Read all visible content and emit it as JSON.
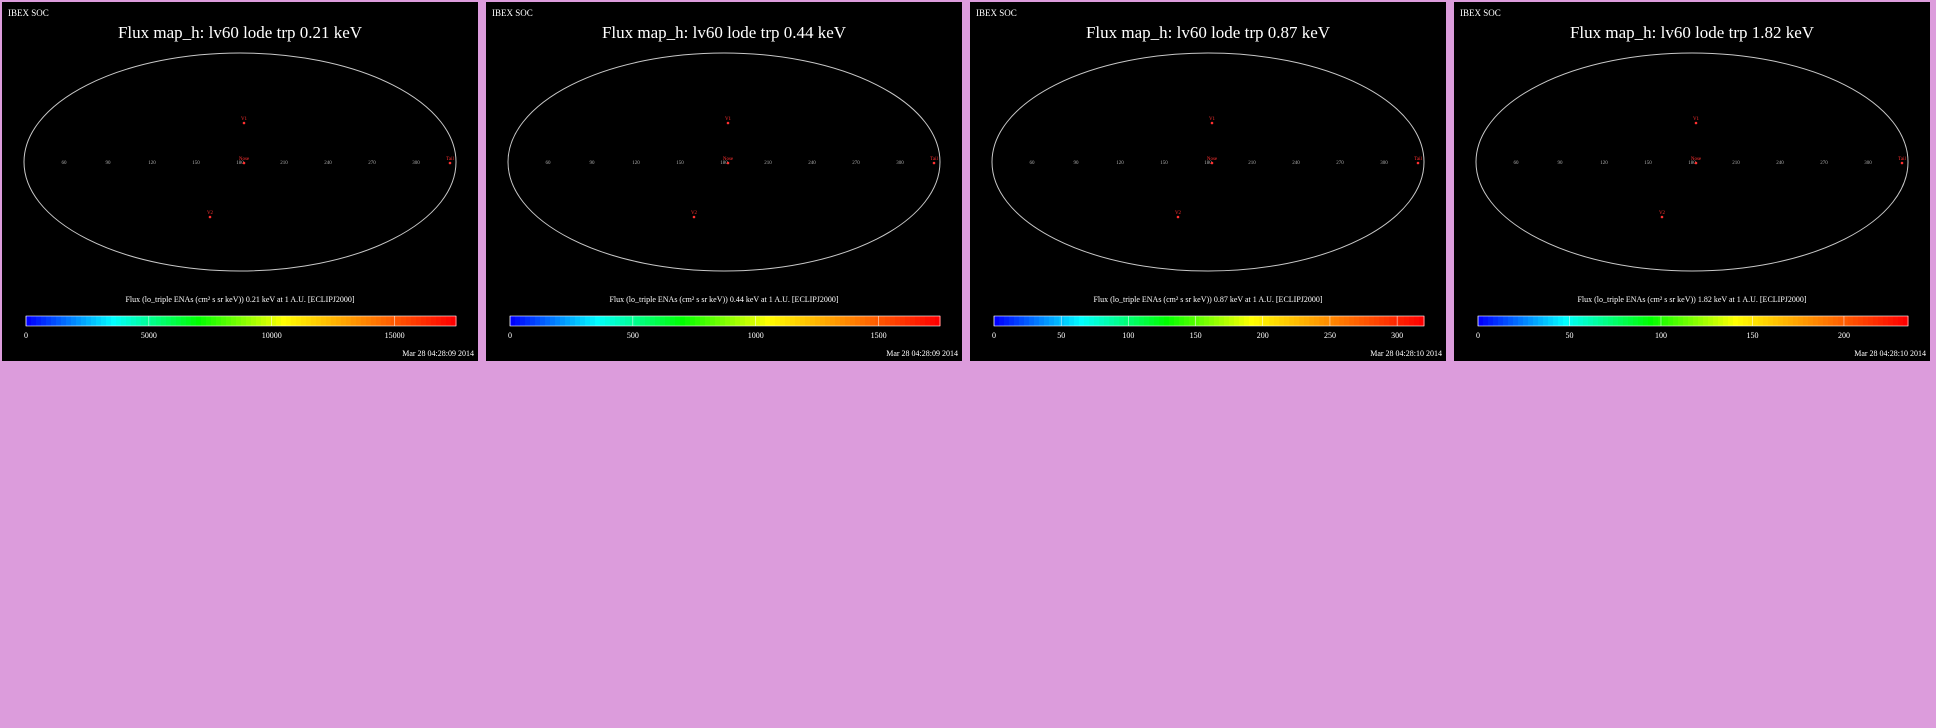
{
  "colors": {
    "background": "#dc9cdc",
    "panel": "#000000",
    "text": "#ffffff",
    "grid": "#8c8c8c",
    "colormap": [
      "#0000ff",
      "#00ffff",
      "#00ff00",
      "#ffff00",
      "#ff8000",
      "#ff0000"
    ]
  },
  "panels": [
    {
      "header": "IBEX SOC",
      "title": "Flux map_h: lv60 lode trp 0.21 keV",
      "caption": "Flux (lo_triple ENAs (cm² s sr keV)) 0.21 keV at 1 A.U. [ECLIPJ2000]",
      "colorbar_ticks": [
        "0",
        "5000",
        "10000",
        "15000"
      ],
      "colorbar_max": 17500,
      "timestamp": "Mar 28 04:28:09 2014",
      "seed": 11,
      "mean": 0.08,
      "spread": 0.08,
      "side_boost": 0.2,
      "center_boost": 0,
      "lon_labels": [
        "60",
        "90",
        "120",
        "150",
        "180",
        "210",
        "240",
        "270",
        "300"
      ],
      "markers": [
        "Nose",
        "V1",
        "V2",
        "Tail"
      ]
    },
    {
      "header": "IBEX SOC",
      "title": "Flux map_h: lv60 lode trp 0.44 keV",
      "caption": "Flux (lo_triple ENAs (cm² s sr keV)) 0.44 keV at 1 A.U. [ECLIPJ2000]",
      "colorbar_ticks": [
        "0",
        "500",
        "1000",
        "1500"
      ],
      "colorbar_max": 1750,
      "timestamp": "Mar 28 04:28:09 2014",
      "seed": 23,
      "mean": 0.14,
      "spread": 0.12,
      "side_boost": 0.2,
      "center_boost": 0,
      "lon_labels": [
        "60",
        "90",
        "120",
        "150",
        "180",
        "210",
        "240",
        "270",
        "300"
      ],
      "markers": [
        "Nose",
        "V1",
        "V2",
        "Tail"
      ]
    },
    {
      "header": "IBEX SOC",
      "title": "Flux map_h: lv60 lode trp 0.87 keV",
      "caption": "Flux (lo_triple ENAs (cm² s sr keV)) 0.87 keV at 1 A.U. [ECLIPJ2000]",
      "colorbar_ticks": [
        "0",
        "50",
        "100",
        "150",
        "200",
        "250",
        "300"
      ],
      "colorbar_max": 320,
      "timestamp": "Mar 28 04:28:10 2014",
      "seed": 37,
      "mean": 0.22,
      "spread": 0.18,
      "side_boost": 0.15,
      "center_boost": 0.1,
      "lon_labels": [
        "60",
        "90",
        "120",
        "150",
        "180",
        "210",
        "240",
        "270",
        "300"
      ],
      "markers": [
        "Nose",
        "V1",
        "V2",
        "Tail"
      ]
    },
    {
      "header": "IBEX SOC",
      "title": "Flux map_h: lv60 lode trp 1.82 keV",
      "caption": "Flux (lo_triple ENAs (cm² s sr keV)) 1.82 keV at 1 A.U. [ECLIPJ2000]",
      "colorbar_ticks": [
        "0",
        "50",
        "100",
        "150",
        "200"
      ],
      "colorbar_max": 235,
      "timestamp": "Mar 28 04:28:10 2014",
      "seed": 53,
      "mean": 0.2,
      "spread": 0.2,
      "side_boost": 0.12,
      "center_boost": 0.12,
      "lon_labels": [
        "60",
        "90",
        "120",
        "150",
        "180",
        "210",
        "240",
        "270",
        "300"
      ],
      "markers": [
        "Nose",
        "V1",
        "V2",
        "Tail"
      ]
    }
  ],
  "chart_data": [
    {
      "type": "heatmap",
      "title": "Flux map_h: lv60 lode trp 0.21 keV",
      "xlabel": "Flux (lo_triple ENAs (cm² s sr keV)) 0.21 keV at 1 A.U. [ECLIPJ2000]",
      "colorbar_range": [
        0,
        17500
      ],
      "projection": "Mollweide"
    },
    {
      "type": "heatmap",
      "title": "Flux map_h: lv60 lode trp 0.44 keV",
      "xlabel": "Flux (lo_triple ENAs (cm² s sr keV)) 0.44 keV at 1 A.U. [ECLIPJ2000]",
      "colorbar_range": [
        0,
        1750
      ],
      "projection": "Mollweide"
    },
    {
      "type": "heatmap",
      "title": "Flux map_h: lv60 lode trp 0.87 keV",
      "xlabel": "Flux (lo_triple ENAs (cm² s sr keV)) 0.87 keV at 1 A.U. [ECLIPJ2000]",
      "colorbar_range": [
        0,
        320
      ],
      "projection": "Mollweide"
    },
    {
      "type": "heatmap",
      "title": "Flux map_h: lv60 lode trp 1.82 keV",
      "xlabel": "Flux (lo_triple ENAs (cm² s sr keV)) 1.82 keV at 1 A.U. [ECLIPJ2000]",
      "colorbar_range": [
        0,
        235
      ],
      "projection": "Mollweide"
    }
  ]
}
